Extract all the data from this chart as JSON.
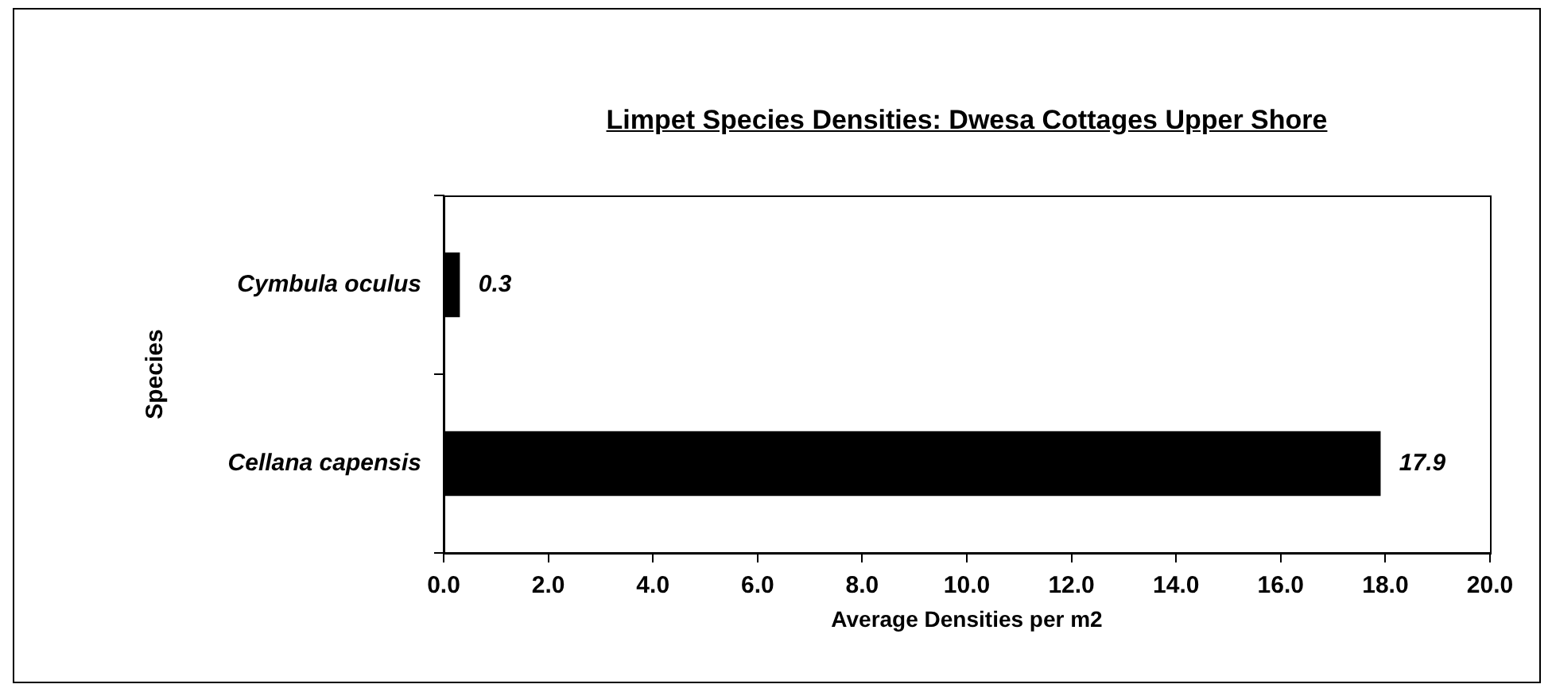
{
  "chart_data": {
    "type": "bar",
    "orientation": "horizontal",
    "title": "Limpet Species Densities: Dwesa Cottages Upper Shore",
    "xlabel": "Average Densities per m2",
    "ylabel": "Species",
    "categories": [
      "Cymbula oculus",
      "Cellana capensis"
    ],
    "values": [
      0.3,
      17.9
    ],
    "color": "#000000",
    "xlim": [
      0,
      20
    ],
    "xticks": [
      {
        "value": 0,
        "label": "0.0"
      },
      {
        "value": 2,
        "label": "2.0"
      },
      {
        "value": 4,
        "label": "4.0"
      },
      {
        "value": 6,
        "label": "6.0"
      },
      {
        "value": 8,
        "label": "8.0"
      },
      {
        "value": 10,
        "label": "10.0"
      },
      {
        "value": 12,
        "label": "12.0"
      },
      {
        "value": 14,
        "label": "14.0"
      },
      {
        "value": 16,
        "label": "16.0"
      },
      {
        "value": 18,
        "label": "18.0"
      },
      {
        "value": 20,
        "label": "20.0"
      }
    ],
    "data_labels": true,
    "grid": false,
    "legend": false
  }
}
